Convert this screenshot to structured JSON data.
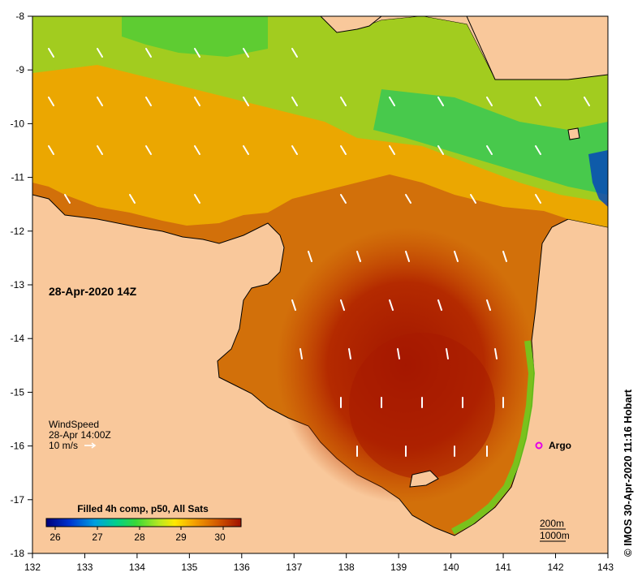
{
  "map": {
    "title": "28-Apr-2020 14Z",
    "credit": "© IMOS 30-Apr-2020 11:16 Hobart",
    "x_axis": {
      "range": [
        132,
        143
      ],
      "ticks": [
        "132",
        "133",
        "134",
        "135",
        "136",
        "137",
        "138",
        "139",
        "140",
        "141",
        "142",
        "143"
      ]
    },
    "y_axis": {
      "range": [
        -18,
        -8
      ],
      "ticks": [
        "-8",
        "-9",
        "-10",
        "-11",
        "-12",
        "-13",
        "-14",
        "-15",
        "-16",
        "-17",
        "-18"
      ]
    },
    "colors": {
      "land": "#f9c89b",
      "coast": "#000000",
      "sst_warm": "#c24400",
      "sst_hot": "#a71800",
      "sst_mid": "#f1a400",
      "sst_cool": "#22d24a",
      "sst_cold": "#0032d0",
      "arrow": "#ffffff",
      "argo": "#e400e6"
    }
  },
  "wind": {
    "label": "WindSpeed",
    "time": "28-Apr 14:00Z",
    "scale": "10 m/s"
  },
  "argo": {
    "label": "Argo",
    "lon": 141.7,
    "lat": -16.0
  },
  "colorbar": {
    "title": "Filled 4h comp, p50, All Sats",
    "ticks": [
      "26",
      "27",
      "28",
      "29",
      "30"
    ],
    "range": [
      25.8,
      30.4
    ]
  },
  "isobaths": [
    "200m",
    "1000m"
  ]
}
